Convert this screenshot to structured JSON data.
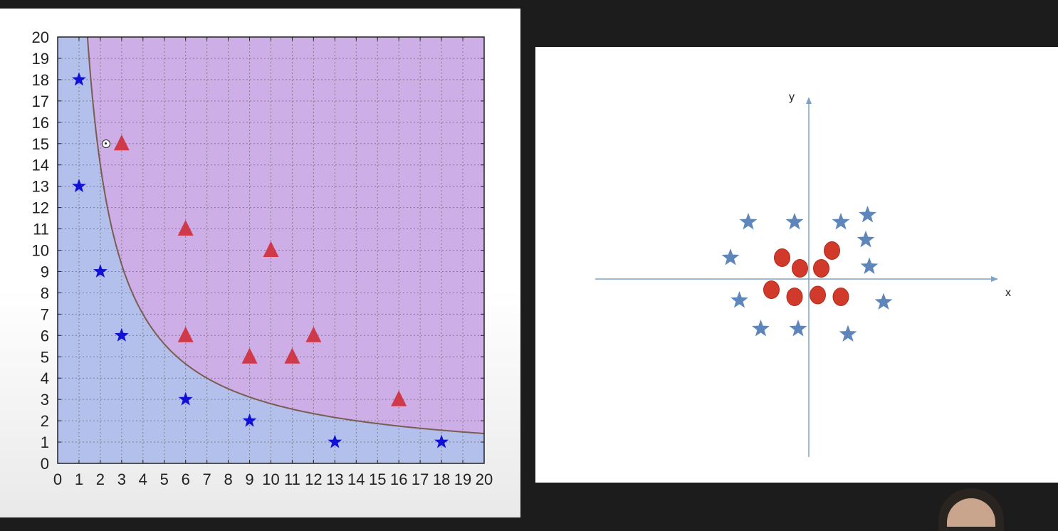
{
  "chart_data": [
    {
      "type": "scatter",
      "title": "",
      "xlabel": "",
      "ylabel": "",
      "xlim": [
        0,
        20
      ],
      "ylim": [
        0,
        20
      ],
      "grid": true,
      "x_ticks": [
        "0",
        "1",
        "2",
        "3",
        "4",
        "5",
        "6",
        "7",
        "8",
        "9",
        "10",
        "11",
        "12",
        "13",
        "14",
        "15",
        "16",
        "17",
        "18",
        "19",
        "20"
      ],
      "y_ticks": [
        "0",
        "1",
        "2",
        "3",
        "4",
        "5",
        "6",
        "7",
        "8",
        "9",
        "10",
        "11",
        "12",
        "13",
        "14",
        "15",
        "16",
        "17",
        "18",
        "19",
        "20"
      ],
      "regions": {
        "upper_color": "#cdaee6",
        "lower_color": "#b3c0ec"
      },
      "boundary": {
        "curve": "x*y = 28",
        "color": "#7a5c52"
      },
      "series": [
        {
          "marker": "star",
          "color": "#1010d6",
          "points": [
            [
              1,
              18
            ],
            [
              1,
              13
            ],
            [
              2,
              9
            ],
            [
              3,
              6
            ],
            [
              6,
              3
            ],
            [
              9,
              2
            ],
            [
              13,
              1
            ],
            [
              18,
              1
            ]
          ]
        },
        {
          "marker": "triangle",
          "color": "#d0394a",
          "points": [
            [
              3,
              15
            ],
            [
              6,
              11
            ],
            [
              10,
              10
            ],
            [
              6,
              6
            ],
            [
              9,
              5
            ],
            [
              11,
              5
            ],
            [
              12,
              6
            ],
            [
              16,
              3
            ]
          ]
        }
      ]
    },
    {
      "type": "scatter",
      "title": "",
      "xlabel": "x",
      "ylabel": "y",
      "xlim": [
        -6,
        5.2
      ],
      "ylim": [
        -5,
        5
      ],
      "axis_color": "#7fa3c6",
      "series": [
        {
          "marker": "star",
          "color": "#5f86bb",
          "points": [
            [
              -1.7,
              1.6
            ],
            [
              -0.4,
              1.6
            ],
            [
              0.9,
              1.6
            ],
            [
              1.65,
              1.8
            ],
            [
              1.6,
              1.1
            ],
            [
              1.7,
              0.35
            ],
            [
              -2.2,
              0.6
            ],
            [
              -1.95,
              -0.6
            ],
            [
              2.1,
              -0.65
            ],
            [
              -1.35,
              -1.4
            ],
            [
              -0.3,
              -1.4
            ],
            [
              1.1,
              -1.55
            ]
          ]
        },
        {
          "marker": "circle",
          "color": "#d13a2a",
          "points": [
            [
              -0.75,
              0.6
            ],
            [
              0.65,
              0.8
            ],
            [
              -0.25,
              0.3
            ],
            [
              0.35,
              0.3
            ],
            [
              -1.05,
              -0.3
            ],
            [
              -0.4,
              -0.5
            ],
            [
              0.25,
              -0.45
            ],
            [
              0.9,
              -0.5
            ]
          ]
        }
      ]
    }
  ]
}
